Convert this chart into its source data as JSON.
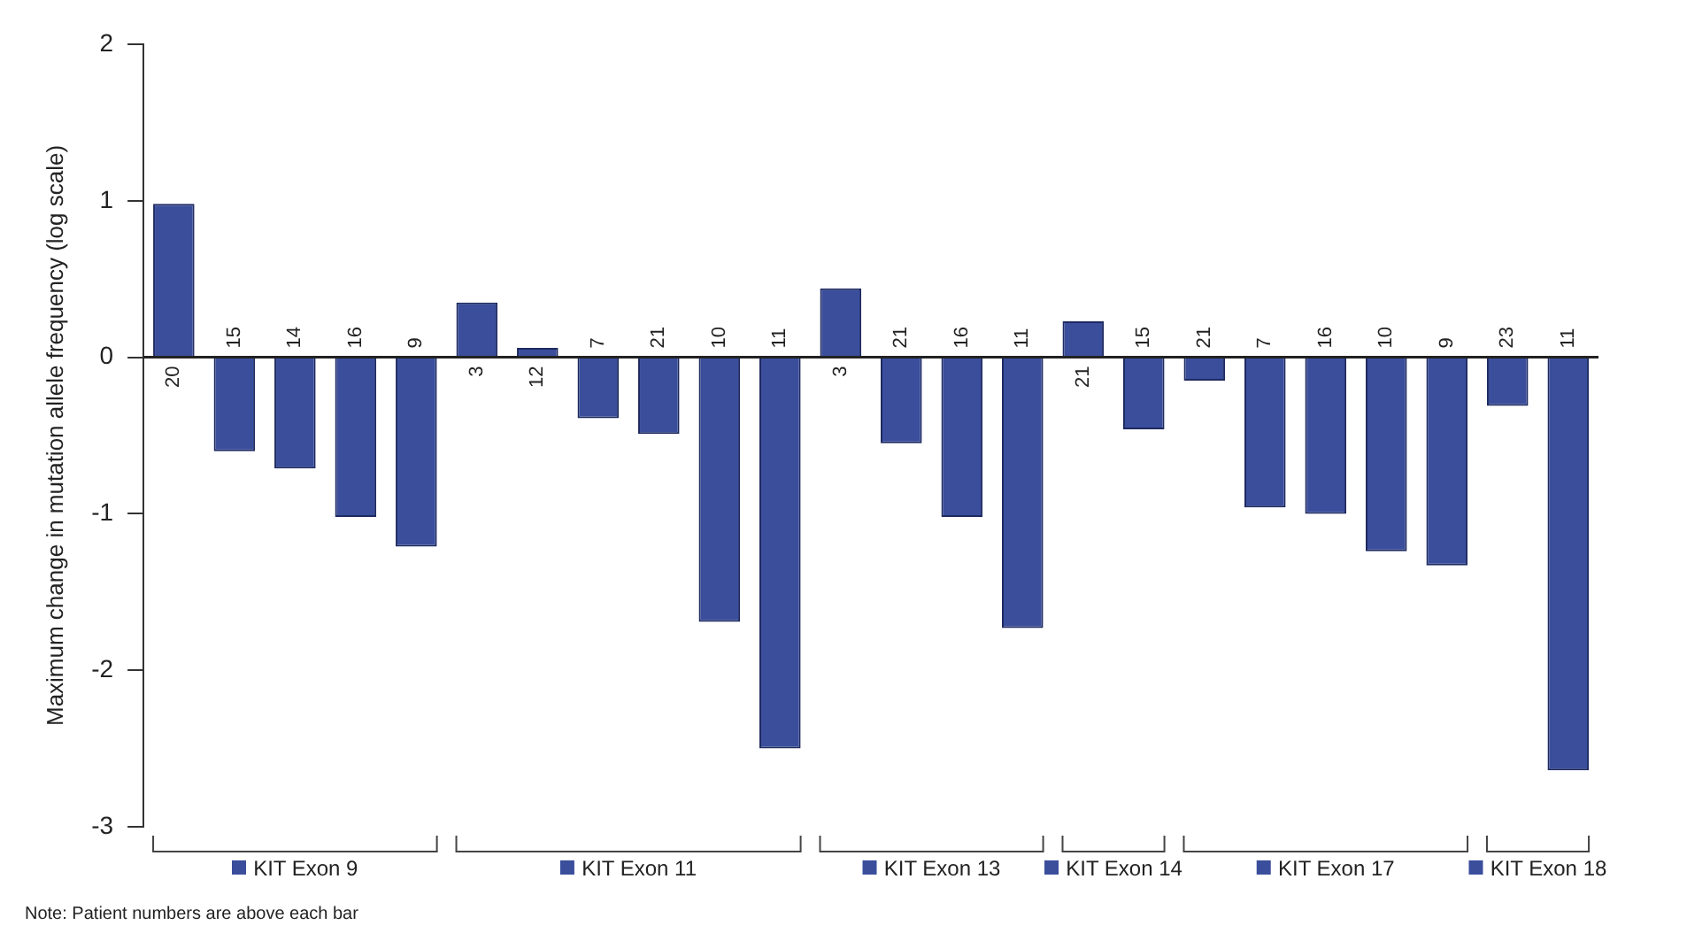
{
  "chart_data": {
    "type": "bar",
    "ylabel": "Maximum change in mutation allele frequency (log scale)",
    "categories": [
      "20",
      "15",
      "14",
      "16",
      "9",
      "3",
      "12",
      "7",
      "21",
      "10",
      "11",
      "3",
      "21",
      "16",
      "11",
      "21",
      "15",
      "21",
      "7",
      "16",
      "10",
      "9",
      "23",
      "11"
    ],
    "series": [
      {
        "name": "KIT Exon 9",
        "color": "#3a4e9c",
        "values": [
          0.98,
          -0.6,
          -0.71,
          -1.02,
          -1.21,
          null,
          null,
          null,
          null,
          null,
          null,
          null,
          null,
          null,
          null,
          null,
          null,
          null,
          null,
          null,
          null,
          null,
          null,
          null
        ]
      },
      {
        "name": "KIT Exon 11",
        "color": "#3a4e9c",
        "values": [
          null,
          null,
          null,
          null,
          null,
          0.35,
          0.06,
          -0.39,
          -0.49,
          -1.69,
          -2.5,
          null,
          null,
          null,
          null,
          null,
          null,
          null,
          null,
          null,
          null,
          null,
          null,
          null
        ]
      },
      {
        "name": "KIT Exon 13",
        "color": "#3a4e9c",
        "values": [
          null,
          null,
          null,
          null,
          null,
          null,
          null,
          null,
          null,
          null,
          null,
          0.44,
          -0.55,
          -1.02,
          -1.73,
          null,
          null,
          null,
          null,
          null,
          null,
          null,
          null,
          null
        ]
      },
      {
        "name": "KIT Exon 14",
        "color": "#3a4e9c",
        "values": [
          null,
          null,
          null,
          null,
          null,
          null,
          null,
          null,
          null,
          null,
          null,
          null,
          null,
          null,
          null,
          0.23,
          -0.46,
          null,
          null,
          null,
          null,
          null,
          null,
          null
        ]
      },
      {
        "name": "KIT Exon 17",
        "color": "#3a4e9c",
        "values": [
          null,
          null,
          null,
          null,
          null,
          null,
          null,
          null,
          null,
          null,
          null,
          null,
          null,
          null,
          null,
          null,
          null,
          -0.15,
          -0.96,
          -1.0,
          -1.24,
          -1.33,
          null,
          null
        ]
      },
      {
        "name": "KIT Exon 18",
        "color": "#3a4e9c",
        "values": [
          null,
          null,
          null,
          null,
          null,
          null,
          null,
          null,
          null,
          null,
          null,
          null,
          null,
          null,
          null,
          null,
          null,
          null,
          null,
          null,
          null,
          null,
          -0.31,
          -2.64
        ]
      }
    ],
    "ylim": [
      -3,
      2
    ],
    "yticks": [
      -3,
      -2,
      -1,
      0,
      1,
      2
    ],
    "grid": false,
    "legend": "bottom",
    "annotations": [
      "Note: Patient numbers are above each bar"
    ]
  }
}
